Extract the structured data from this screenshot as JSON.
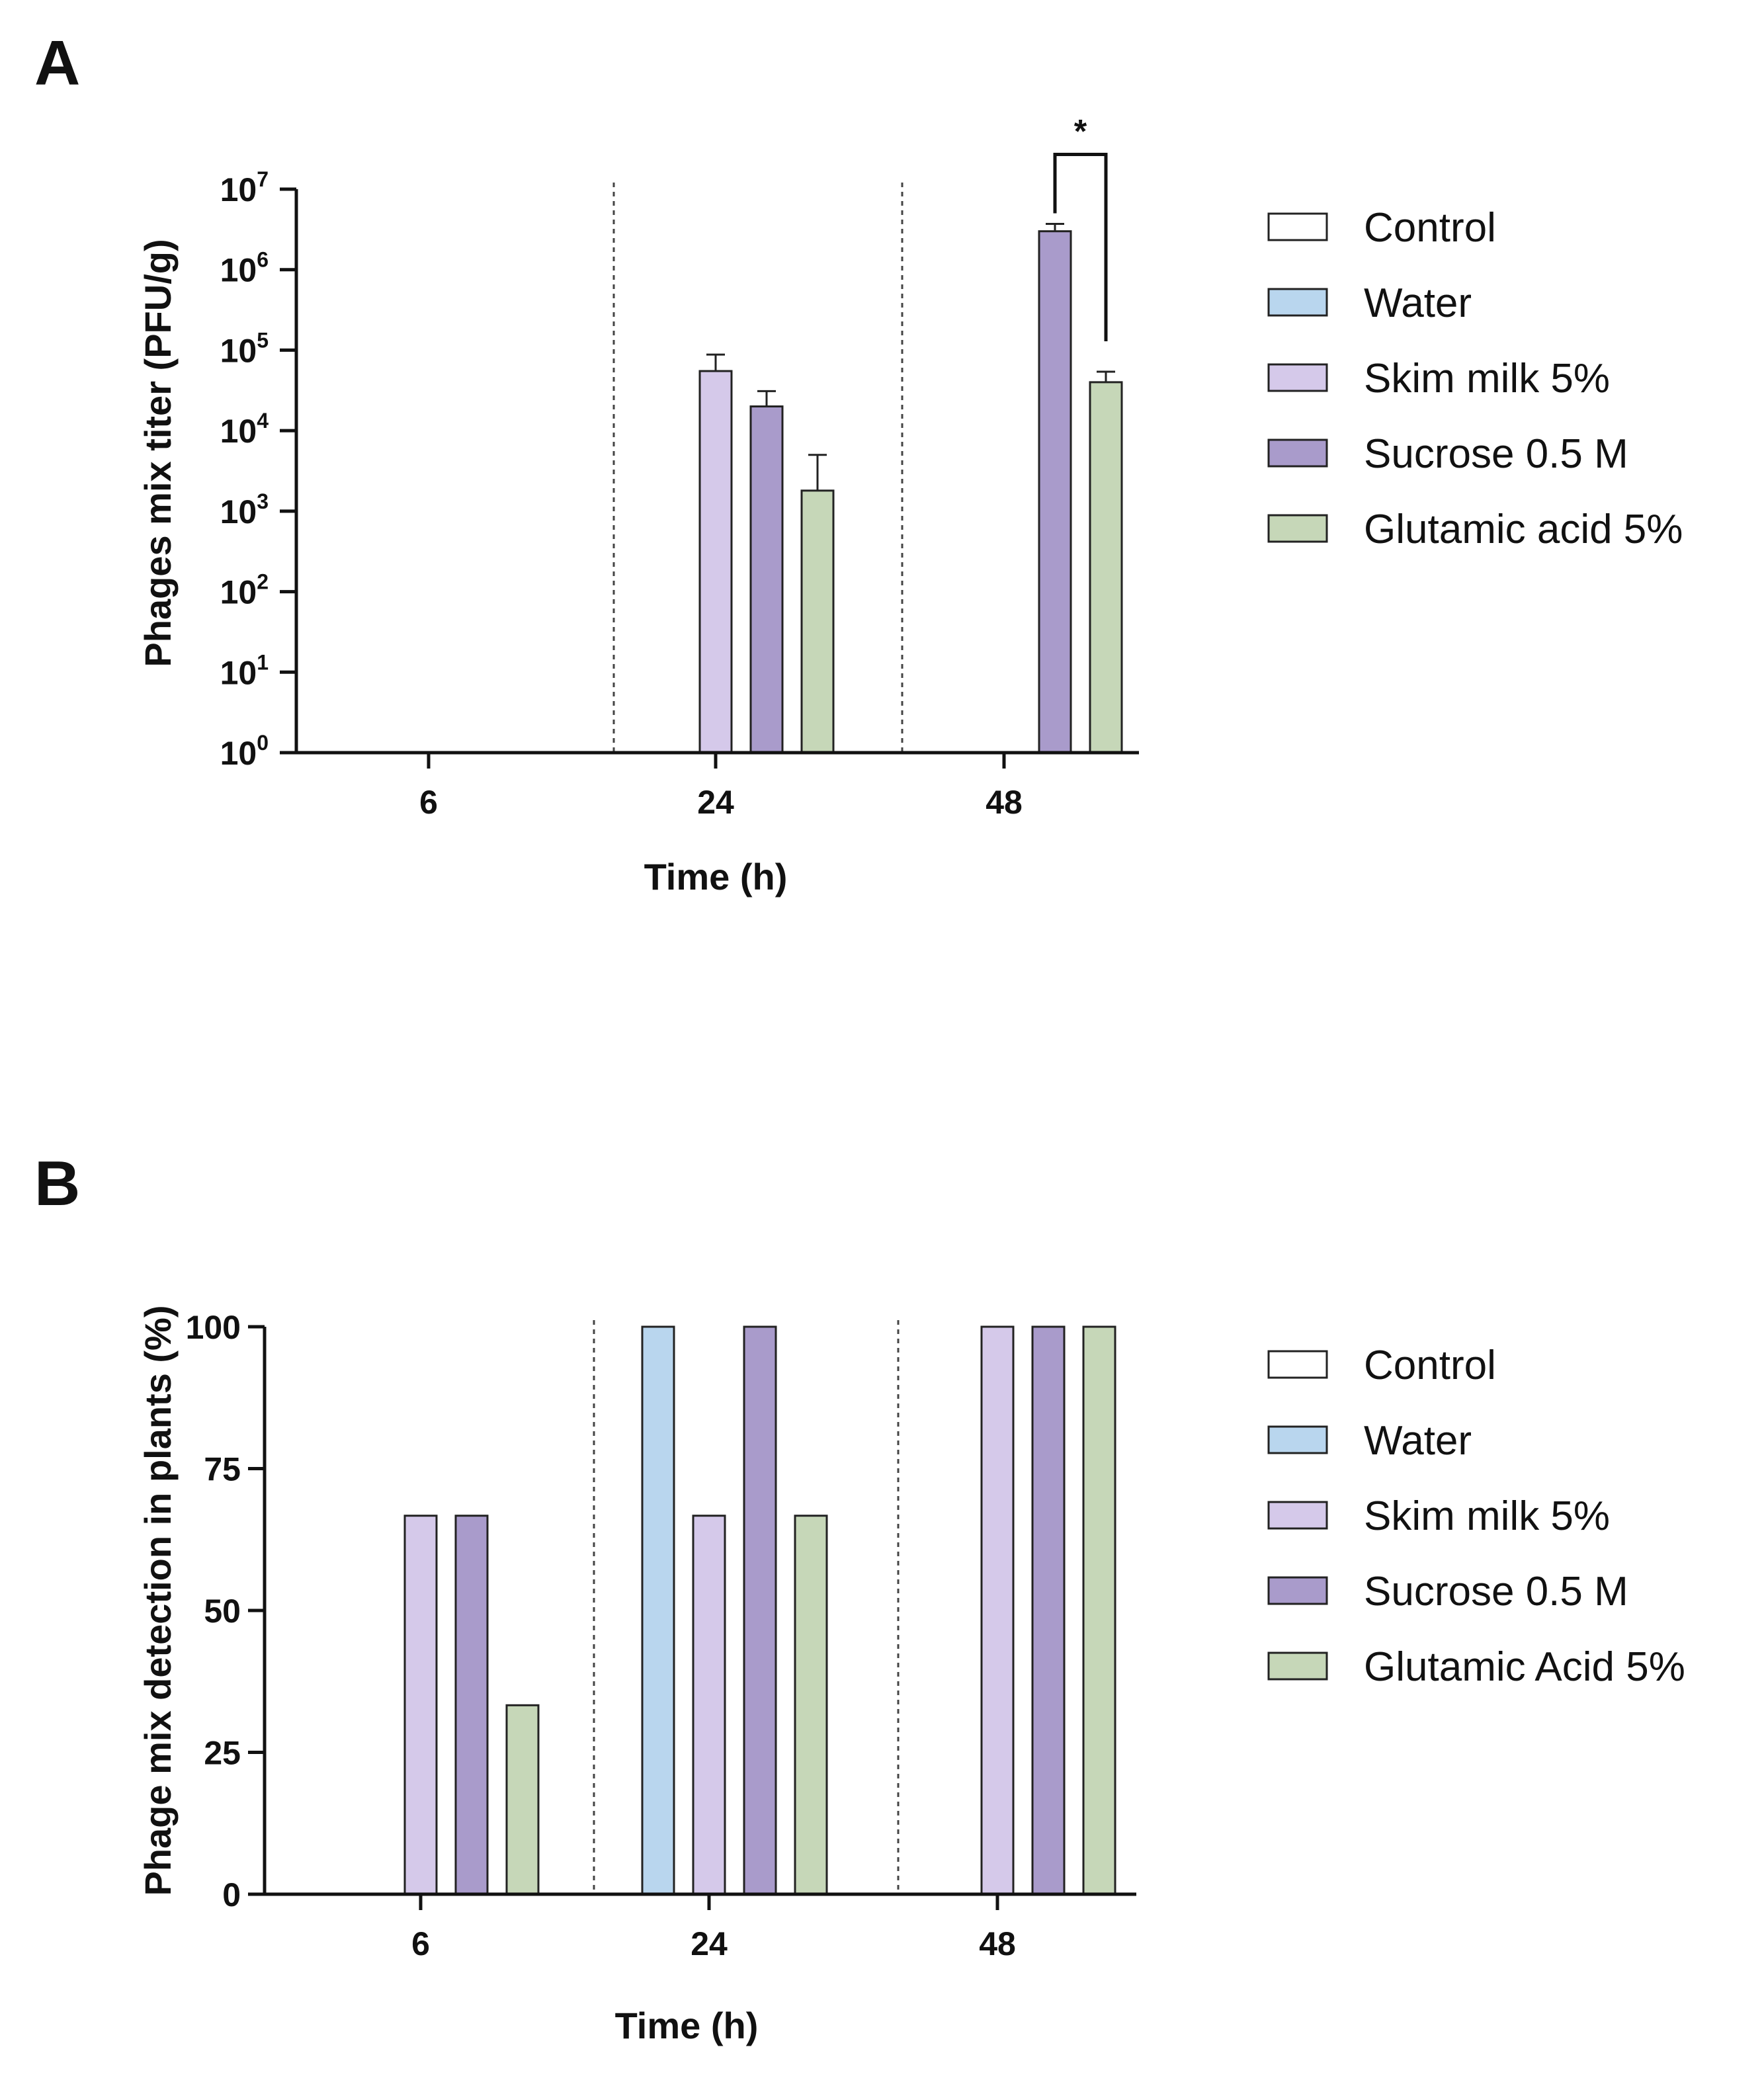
{
  "panels": {
    "a": {
      "label": "A"
    },
    "b": {
      "label": "B"
    }
  },
  "chart_data": [
    {
      "type": "bar",
      "panel": "A",
      "scale": "log10",
      "categories": [
        "6",
        "24",
        "48"
      ],
      "series": [
        {
          "name": "Control",
          "color": "#ffffff",
          "values": [
            null,
            null,
            null
          ],
          "errors": [
            null,
            null,
            null
          ]
        },
        {
          "name": "Water",
          "color": "#b9d6ee",
          "values": [
            null,
            null,
            null
          ],
          "errors": [
            null,
            null,
            null
          ]
        },
        {
          "name": "Skim milk 5%",
          "color": "#d5c9ea",
          "values": [
            null,
            55000,
            null
          ],
          "errors": [
            null,
            33000,
            null
          ]
        },
        {
          "name": "Sucrose 0.5 M",
          "color": "#a99bcb",
          "values": [
            null,
            20000,
            3000000
          ],
          "errors": [
            null,
            11000,
            700000
          ]
        },
        {
          "name": "Glutamic acid 5%",
          "color": "#c6d7b8",
          "values": [
            null,
            1800,
            40000
          ],
          "errors": [
            null,
            3200,
            14000
          ]
        }
      ],
      "ylim": [
        1,
        10000000
      ],
      "y_ticks": [
        {
          "base": "10",
          "exp": "0"
        },
        {
          "base": "10",
          "exp": "1"
        },
        {
          "base": "10",
          "exp": "2"
        },
        {
          "base": "10",
          "exp": "3"
        },
        {
          "base": "10",
          "exp": "4"
        },
        {
          "base": "10",
          "exp": "5"
        },
        {
          "base": "10",
          "exp": "6"
        },
        {
          "base": "10",
          "exp": "7"
        }
      ],
      "xlabel": "Time (h)",
      "ylabel": "Phages mix titer (PFU/g)",
      "annotations": [
        {
          "text": "*",
          "between": [
            "Sucrose 0.5 M",
            "Glutamic acid 5%"
          ],
          "category": "48"
        }
      ],
      "legend": [
        "Control",
        "Water",
        "Skim milk 5%",
        "Sucrose 0.5 M",
        "Glutamic acid 5%"
      ],
      "legend_position": "right"
    },
    {
      "type": "bar",
      "panel": "B",
      "categories": [
        "6",
        "24",
        "48"
      ],
      "series": [
        {
          "name": "Control",
          "color": "#ffffff",
          "values": [
            0,
            0,
            0
          ]
        },
        {
          "name": "Water",
          "color": "#b9d6ee",
          "values": [
            0,
            100,
            0
          ]
        },
        {
          "name": "Skim milk 5%",
          "color": "#d5c9ea",
          "values": [
            66.7,
            66.7,
            100
          ]
        },
        {
          "name": "Sucrose 0.5 M",
          "color": "#a99bcb",
          "values": [
            66.7,
            100,
            100
          ]
        },
        {
          "name": "Glutamic Acid 5%",
          "color": "#c6d7b8",
          "values": [
            33.3,
            66.7,
            100
          ]
        }
      ],
      "ylim": [
        0,
        100
      ],
      "y_ticks": [
        "0",
        "25",
        "50",
        "75",
        "100"
      ],
      "xlabel": "Time (h)",
      "ylabel": "Phage mix detection in plants (%)",
      "legend": [
        "Control",
        "Water",
        "Skim milk 5%",
        "Sucrose 0.5 M",
        "Glutamic Acid 5%"
      ],
      "legend_position": "right"
    }
  ]
}
